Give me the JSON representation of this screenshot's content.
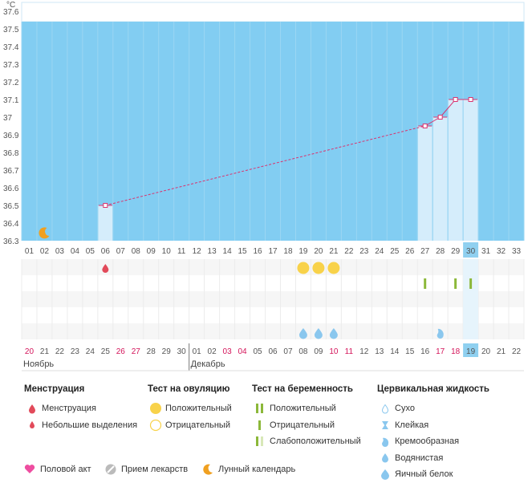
{
  "chart_data": {
    "type": "line",
    "unit_label": "°C",
    "ylim": [
      36.3,
      37.65
    ],
    "yticks": [
      "37.6",
      "37.5",
      "37.4",
      "37.3",
      "37.2",
      "37.1",
      "37",
      "36.9",
      "36.8",
      "36.7",
      "36.6",
      "36.5",
      "36.4",
      "36.3"
    ],
    "cycle_days": [
      "01",
      "02",
      "03",
      "04",
      "05",
      "06",
      "07",
      "08",
      "09",
      "10",
      "11",
      "12",
      "13",
      "14",
      "15",
      "16",
      "17",
      "18",
      "19",
      "20",
      "21",
      "22",
      "23",
      "24",
      "25",
      "26",
      "27",
      "28",
      "29",
      "30",
      "31",
      "32",
      "33"
    ],
    "dates": [
      "20",
      "21",
      "22",
      "23",
      "24",
      "25",
      "26",
      "27",
      "28",
      "29",
      "30",
      "01",
      "02",
      "03",
      "04",
      "05",
      "06",
      "07",
      "08",
      "09",
      "10",
      "11",
      "12",
      "13",
      "14",
      "15",
      "16",
      "17",
      "18",
      "19",
      "20",
      "21",
      "22"
    ],
    "weekend_dates_index": [
      0,
      6,
      7,
      13,
      14,
      20,
      21,
      27,
      28
    ],
    "today_index": 29,
    "points": [
      {
        "day": 6,
        "temp": 36.5
      },
      {
        "day": 27,
        "temp": 36.95
      },
      {
        "day": 28,
        "temp": 37.0
      },
      {
        "day": 29,
        "temp": 37.1
      },
      {
        "day": 30,
        "temp": 37.1
      }
    ],
    "menstruation_days": [
      6
    ],
    "moon_days": [
      2
    ],
    "ovulation_positive_days": [
      19,
      20,
      21
    ],
    "pregnancy_test_days": [
      27,
      29,
      30
    ],
    "cervical_eggwhite_days": [
      19,
      20,
      21
    ],
    "cervical_watery_days": [
      28
    ],
    "months": [
      {
        "label": "Ноябрь",
        "start_index": 0
      },
      {
        "label": "Декабрь",
        "start_index": 11
      }
    ],
    "colors": {
      "upper_band": "#ffffff",
      "chart_fill": "#82cdf2",
      "bar_fill": "#d5edfb",
      "line": "#d9336f",
      "today": "#8fd0f0",
      "red": "#e24a5a",
      "yellow": "#f8d24a",
      "green": "#8cb83a",
      "drop_blue": "#8ac7ee",
      "moon": "#f0a020"
    }
  },
  "legend": {
    "menstruation": {
      "title": "Менструация",
      "items": [
        "Менструация",
        "Небольшие выделения"
      ]
    },
    "ovulation": {
      "title": "Тест на овуляцию",
      "items": [
        "Положительный",
        "Отрицательный"
      ]
    },
    "pregnancy": {
      "title": "Тест на беременность",
      "items": [
        "Положительный",
        "Отрицательный",
        "Слабоположительный"
      ]
    },
    "cervical": {
      "title": "Цервикальная жидкость",
      "items": [
        "Сухо",
        "Клейкая",
        "Кремообразная",
        "Водянистая",
        "Яичный белок"
      ]
    }
  },
  "bottom_legend": {
    "intercourse": "Половой акт",
    "medication": "Прием лекарств",
    "lunar": "Лунный календарь"
  }
}
